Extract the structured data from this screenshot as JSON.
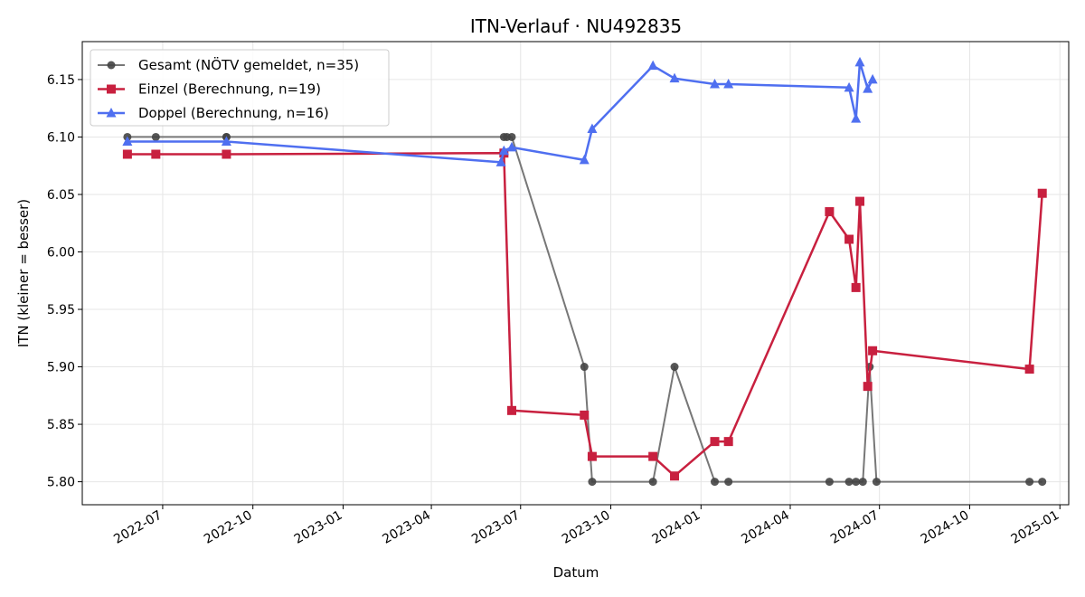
{
  "chart_data": {
    "type": "line",
    "title": "ITN-Verlauf · NU492835",
    "xlabel": "Datum",
    "ylabel": "ITN  (kleiner = besser)",
    "x_type": "date",
    "xlim": [
      "2022-04-10",
      "2025-01-10"
    ],
    "ylim": [
      5.78,
      6.183
    ],
    "x_ticks": [
      {
        "date": "2022-07-01",
        "label": "2022-07"
      },
      {
        "date": "2022-10-01",
        "label": "2022-10"
      },
      {
        "date": "2023-01-01",
        "label": "2023-01"
      },
      {
        "date": "2023-04-01",
        "label": "2023-04"
      },
      {
        "date": "2023-07-01",
        "label": "2023-07"
      },
      {
        "date": "2023-10-01",
        "label": "2023-10"
      },
      {
        "date": "2024-01-01",
        "label": "2024-01"
      },
      {
        "date": "2024-04-01",
        "label": "2024-04"
      },
      {
        "date": "2024-07-01",
        "label": "2024-07"
      },
      {
        "date": "2024-10-01",
        "label": "2024-10"
      },
      {
        "date": "2025-01-01",
        "label": "2025-01"
      }
    ],
    "y_ticks": [
      {
        "value": 5.8,
        "label": "5.80"
      },
      {
        "value": 5.85,
        "label": "5.85"
      },
      {
        "value": 5.9,
        "label": "5.90"
      },
      {
        "value": 5.95,
        "label": "5.95"
      },
      {
        "value": 6.0,
        "label": "6.00"
      },
      {
        "value": 6.05,
        "label": "6.05"
      },
      {
        "value": 6.1,
        "label": "6.10"
      },
      {
        "value": 6.15,
        "label": "6.15"
      }
    ],
    "grid": true,
    "legend_position": "top-left",
    "series": [
      {
        "name": "Gesamt (NÖTV gemeldet, n=35)",
        "color": "#444444",
        "line_color": "#777777",
        "marker": "circle",
        "x": [
          "2022-05-26",
          "2022-06-24",
          "2022-09-04",
          "2022-09-04",
          "2023-06-14",
          "2023-06-17",
          "2023-06-22",
          "2023-09-04",
          "2023-09-12",
          "2023-11-13",
          "2023-12-05",
          "2024-01-15",
          "2024-01-29",
          "2024-05-11",
          "2024-05-31",
          "2024-06-07",
          "2024-06-14",
          "2024-06-21",
          "2024-06-28",
          "2024-12-01",
          "2024-12-14"
        ],
        "y": [
          6.1,
          6.1,
          6.1,
          6.1,
          6.1,
          6.1,
          6.1,
          5.9,
          5.8,
          5.8,
          5.9,
          5.8,
          5.8,
          5.8,
          5.8,
          5.8,
          5.8,
          5.9,
          5.8,
          5.8,
          5.8
        ]
      },
      {
        "name": "Einzel (Berechnung, n=19)",
        "color": "#c8203f",
        "marker": "square",
        "x": [
          "2022-05-26",
          "2022-06-24",
          "2022-09-04",
          "2023-06-14",
          "2023-06-22",
          "2023-09-04",
          "2023-09-12",
          "2023-11-13",
          "2023-12-05",
          "2024-01-15",
          "2024-01-29",
          "2024-05-11",
          "2024-05-31",
          "2024-06-07",
          "2024-06-11",
          "2024-06-19",
          "2024-06-24",
          "2024-12-01",
          "2024-12-14"
        ],
        "y": [
          6.085,
          6.085,
          6.085,
          6.086,
          5.862,
          5.858,
          5.822,
          5.822,
          5.805,
          5.835,
          5.835,
          6.035,
          6.011,
          5.969,
          6.044,
          5.883,
          5.914,
          5.898,
          6.051
        ]
      },
      {
        "name": "Doppel (Berechnung, n=16)",
        "color": "#4f6ff0",
        "marker": "triangle",
        "x": [
          "2022-05-26",
          "2022-09-04",
          "2023-06-11",
          "2023-06-14",
          "2023-06-22",
          "2023-09-04",
          "2023-09-12",
          "2023-11-13",
          "2023-12-05",
          "2024-01-15",
          "2024-01-29",
          "2024-05-31",
          "2024-06-07",
          "2024-06-11",
          "2024-06-19",
          "2024-06-24"
        ],
        "y": [
          6.096,
          6.096,
          6.078,
          6.088,
          6.091,
          6.08,
          6.107,
          6.162,
          6.151,
          6.146,
          6.146,
          6.143,
          6.116,
          6.165,
          6.142,
          6.15
        ]
      }
    ]
  }
}
